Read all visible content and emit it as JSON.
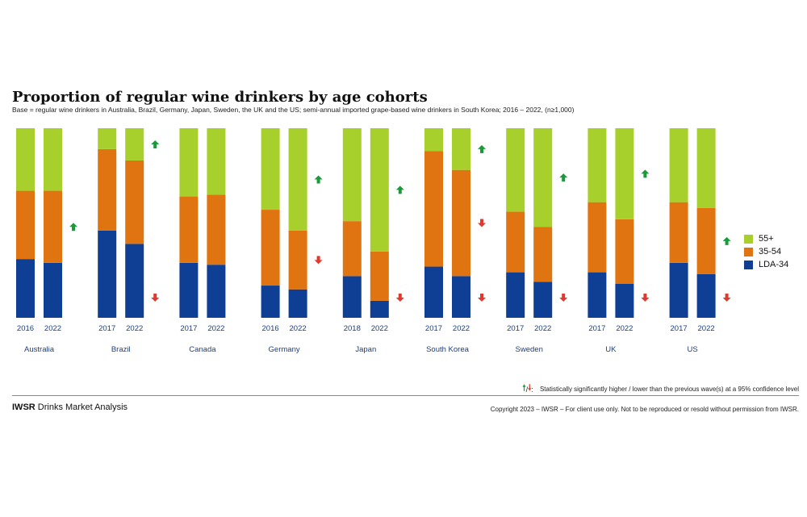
{
  "header": {
    "title": "Proportion of regular wine drinkers by age cohorts",
    "subtitle": "Base = regular wine drinkers in Australia, Brazil, Germany, Japan, Sweden, the UK and the US; semi-annual imported grape-based wine drinkers in South Korea; 2016 – 2022, (n≥1,000)"
  },
  "footer": {
    "significance_note": "Statistically significantly higher / lower than the previous wave(s) at a 95% confidence level",
    "brand_bold": "IWSR",
    "brand_rest": " Drinks Market Analysis",
    "copyright": "Copyright 2023 – IWSR – For client use only. Not to be reproduced or resold without permission from IWSR."
  },
  "colors": {
    "55+": "#a8d02c",
    "35-54": "#e07410",
    "LDA-34": "#0e3f94",
    "up_arrow": "#1a9a3a",
    "down_arrow": "#e03a2e"
  },
  "icons": {
    "up": "arrow-up-icon",
    "down": "arrow-down-icon"
  },
  "chart_data": {
    "type": "bar",
    "stacked": true,
    "normalized_percent": true,
    "legend": [
      "55+",
      "35-54",
      "LDA-34"
    ],
    "legend_position": "right",
    "grid": false,
    "ylim": [
      0,
      100
    ],
    "countries": [
      {
        "name": "Australia",
        "bars": [
          {
            "year": "2016",
            "LDA-34": 31,
            "35-54": 36,
            "55+": 33
          },
          {
            "year": "2022",
            "LDA-34": 29,
            "35-54": 38,
            "55+": 33
          }
        ],
        "significance": {
          "55+": "",
          "35-54": "up",
          "LDA-34": ""
        }
      },
      {
        "name": "Brazil",
        "bars": [
          {
            "year": "2017",
            "LDA-34": 46,
            "35-54": 43,
            "55+": 11
          },
          {
            "year": "2022",
            "LDA-34": 39,
            "35-54": 44,
            "55+": 17
          }
        ],
        "significance": {
          "55+": "up",
          "35-54": "",
          "LDA-34": "down"
        }
      },
      {
        "name": "Canada",
        "bars": [
          {
            "year": "2017",
            "LDA-34": 29,
            "35-54": 35,
            "55+": 36
          },
          {
            "year": "2022",
            "LDA-34": 28,
            "35-54": 37,
            "55+": 35
          }
        ],
        "significance": {
          "55+": "",
          "35-54": "",
          "LDA-34": ""
        }
      },
      {
        "name": "Germany",
        "bars": [
          {
            "year": "2016",
            "LDA-34": 17,
            "35-54": 40,
            "55+": 43
          },
          {
            "year": "2022",
            "LDA-34": 15,
            "35-54": 31,
            "55+": 54
          }
        ],
        "significance": {
          "55+": "up",
          "35-54": "down",
          "LDA-34": ""
        }
      },
      {
        "name": "Japan",
        "bars": [
          {
            "year": "2018",
            "LDA-34": 22,
            "35-54": 29,
            "55+": 49
          },
          {
            "year": "2022",
            "LDA-34": 9,
            "35-54": 26,
            "55+": 65
          }
        ],
        "significance": {
          "55+": "up",
          "35-54": "",
          "LDA-34": "down"
        }
      },
      {
        "name": "South Korea",
        "bars": [
          {
            "year": "2017",
            "LDA-34": 27,
            "35-54": 61,
            "55+": 12
          },
          {
            "year": "2022",
            "LDA-34": 22,
            "35-54": 56,
            "55+": 22
          }
        ],
        "significance": {
          "55+": "up",
          "35-54": "down",
          "LDA-34": "down"
        }
      },
      {
        "name": "Sweden",
        "bars": [
          {
            "year": "2017",
            "LDA-34": 24,
            "35-54": 32,
            "55+": 44
          },
          {
            "year": "2022",
            "LDA-34": 19,
            "35-54": 29,
            "55+": 52
          }
        ],
        "significance": {
          "55+": "up",
          "35-54": "",
          "LDA-34": "down"
        }
      },
      {
        "name": "UK",
        "bars": [
          {
            "year": "2017",
            "LDA-34": 24,
            "35-54": 37,
            "55+": 39
          },
          {
            "year": "2022",
            "LDA-34": 18,
            "35-54": 34,
            "55+": 48
          }
        ],
        "significance": {
          "55+": "up",
          "35-54": "",
          "LDA-34": "down"
        }
      },
      {
        "name": "US",
        "bars": [
          {
            "year": "2017",
            "LDA-34": 29,
            "35-54": 32,
            "55+": 39
          },
          {
            "year": "2022",
            "LDA-34": 23,
            "35-54": 35,
            "55+": 42
          }
        ],
        "significance": {
          "55+": "",
          "35-54": "up",
          "LDA-34": "down"
        }
      }
    ]
  }
}
